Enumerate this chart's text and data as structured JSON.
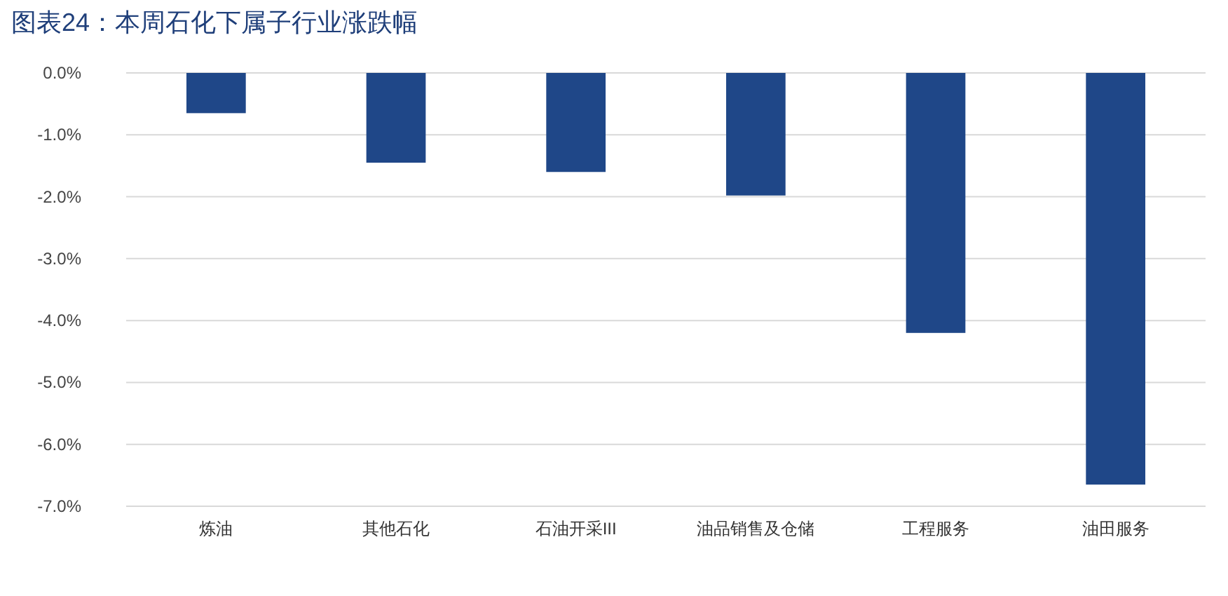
{
  "chart_data": {
    "type": "bar",
    "title": "图表24：本周石化下属子行业涨跌幅",
    "categories": [
      "炼油",
      "其他石化",
      "石油开采III",
      "油品销售及仓储",
      "工程服务",
      "油田服务"
    ],
    "series": [
      {
        "color": "#1f4788",
        "values": [
          -0.65,
          -1.45,
          -1.6,
          -1.98,
          -4.2,
          -6.65
        ]
      }
    ],
    "ylim": [
      -7,
      0
    ],
    "yticks": [
      {
        "value": 0,
        "label": "0.0%"
      },
      {
        "value": -1,
        "label": "-1.0%"
      },
      {
        "value": -2,
        "label": "-2.0%"
      },
      {
        "value": -3,
        "label": "-3.0%"
      },
      {
        "value": -4,
        "label": "-4.0%"
      },
      {
        "value": -5,
        "label": "-5.0%"
      },
      {
        "value": -6,
        "label": "-6.0%"
      },
      {
        "value": -7,
        "label": "-7.0%"
      }
    ],
    "grid": "y"
  }
}
